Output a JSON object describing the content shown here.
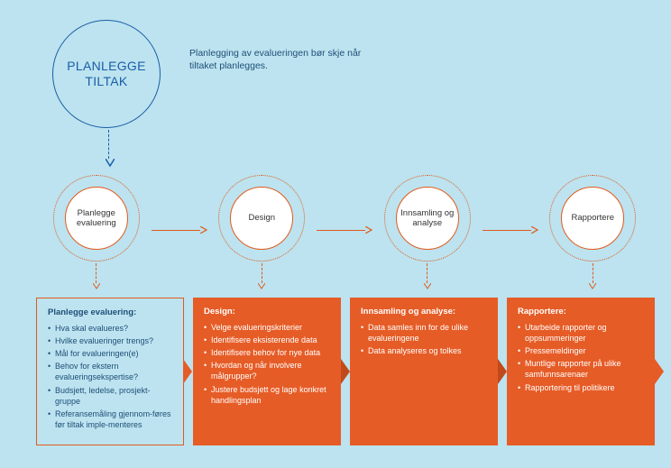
{
  "colors": {
    "background": "#bce3ef",
    "blue": "#1a5da8",
    "blueText": "#1f4e79",
    "orange": "#e65c26",
    "orangeLine": "#e15a1d",
    "white": "#ffffff"
  },
  "topCircle": {
    "line1": "PLANLEGGE",
    "line2": "TILTAK"
  },
  "intro": "Planlegging av evalueringen bør skje når tiltaket planlegges.",
  "stages": [
    {
      "label": "Planlegge evaluering"
    },
    {
      "label": "Design"
    },
    {
      "label": "Innsamling og analyse"
    },
    {
      "label": "Rapportere"
    }
  ],
  "boxes": [
    {
      "style": "outlined",
      "title": "Planlegge evaluering:",
      "items": [
        "Hva skal evalueres?",
        "Hvilke evalueringer trengs?",
        "Mål for evalueringen(e)",
        "Behov for ekstern evalueringsekspertise?",
        "Budsjett, ledelse, prosjekt-gruppe",
        "Referansemåling gjennom-føres før tiltak imple-menteres"
      ]
    },
    {
      "style": "filled",
      "title": "Design:",
      "items": [
        "Velge evalueringskriterier",
        "Identifisere eksisterende data",
        "Identifisere behov for nye data",
        "Hvordan og når involvere målgrupper?",
        "Justere budsjett og lage konkret handlingsplan"
      ]
    },
    {
      "style": "filled",
      "title": "Innsamling og analyse:",
      "items": [
        "Data samles inn for de ulike evalueringene",
        "Data analyseres og tolkes"
      ]
    },
    {
      "style": "filled",
      "title": "Rapportere:",
      "items": [
        "Utarbeide rapporter og oppsummeringer",
        "Pressemeldinger",
        "Muntlige rapporter på ulike samfunnsarenaer",
        "Rapportering til politikere"
      ]
    }
  ]
}
